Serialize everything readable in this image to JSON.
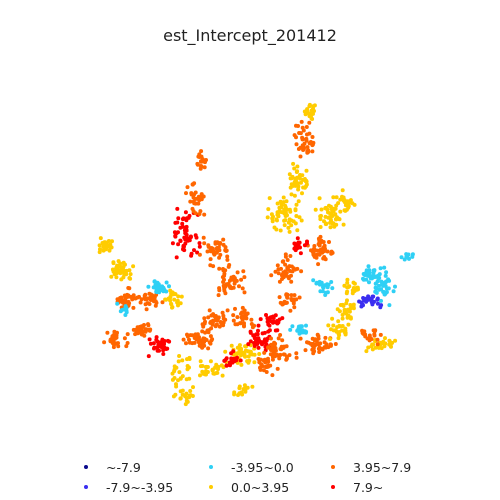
{
  "title": "est_Intercept_201412",
  "legend": [
    {
      "label": "~-7.9",
      "color": "#0a0a8c"
    },
    {
      "label": "-7.9~-3.95",
      "color": "#3a2ef0"
    },
    {
      "label": "-3.95~0.0",
      "color": "#2fd0f5"
    },
    {
      "label": "0.0~3.95",
      "color": "#ffcc00"
    },
    {
      "label": "3.95~7.9",
      "color": "#ff6600"
    },
    {
      "label": "7.9~",
      "color": "#ff0000"
    }
  ],
  "colors": {
    "class_1": "#0a0a8c",
    "class_2": "#3a2ef0",
    "class_3": "#2fd0f5",
    "class_4": "#ffcc00",
    "class_5": "#ff6600",
    "class_6": "#ff0000"
  }
}
